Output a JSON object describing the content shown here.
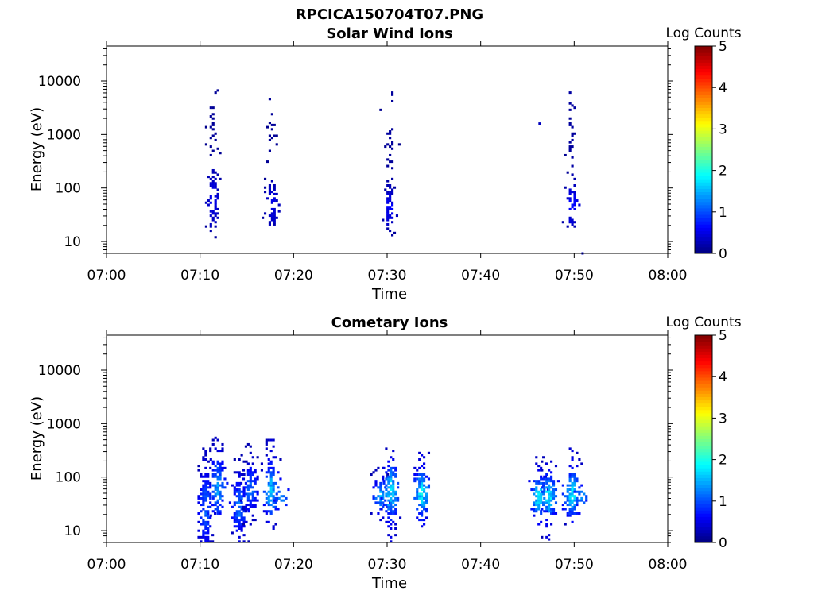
{
  "figure_title": "RPCICA150704T07.PNG",
  "colors": {
    "axis": "#000000",
    "background": "#ffffff"
  },
  "colorscale": {
    "name": "jet",
    "label": "Log Counts",
    "range": [
      0,
      5
    ],
    "ticks": [
      "0",
      "1",
      "2",
      "3",
      "4",
      "5"
    ]
  },
  "chart_data": [
    {
      "type": "heatmap",
      "title": "Solar Wind Ions",
      "xlabel": "Time",
      "ylabel": "Energy (eV)",
      "x_range_minutes": [
        0,
        60
      ],
      "y_range_ev": [
        6,
        45000
      ],
      "y_scale": "log",
      "x_tick_values": [
        0,
        10,
        20,
        30,
        40,
        50,
        60
      ],
      "x_tick_labels": [
        "07:00",
        "07:10",
        "07:20",
        "07:30",
        "07:40",
        "07:50",
        "08:00"
      ],
      "y_tick_values": [
        10,
        100,
        1000,
        10000
      ],
      "y_tick_labels": [
        "10",
        "100",
        "1000",
        "10000"
      ],
      "colorbar_label": "Log Counts",
      "bursts": [
        {
          "t": 11.4,
          "e_min": 12,
          "e_max": 7000,
          "core_min": 18,
          "core_max": 200,
          "peak": 0.6,
          "density": 0.22
        },
        {
          "t": 17.7,
          "e_min": 18,
          "e_max": 6000,
          "core_min": 20,
          "core_max": 120,
          "peak": 0.6,
          "density": 0.22
        },
        {
          "t": 30.3,
          "e_min": 12,
          "e_max": 6500,
          "core_min": 20,
          "core_max": 90,
          "peak": 0.7,
          "density": 0.22
        },
        {
          "t": 49.8,
          "e_min": 18,
          "e_max": 9000,
          "core_min": 20,
          "core_max": 110,
          "peak": 0.75,
          "density": 0.25
        }
      ],
      "isolated_points": [
        {
          "t": 46.3,
          "e": 1600,
          "v": 0.3
        },
        {
          "t": 50.9,
          "e": 6,
          "v": 0.3
        }
      ]
    },
    {
      "type": "heatmap",
      "title": "Cometary Ions",
      "xlabel": "Time",
      "ylabel": "Energy (eV)",
      "x_range_minutes": [
        0,
        60
      ],
      "y_range_ev": [
        6,
        45000
      ],
      "y_scale": "log",
      "x_tick_values": [
        0,
        10,
        20,
        30,
        40,
        50,
        60
      ],
      "x_tick_labels": [
        "07:00",
        "07:10",
        "07:20",
        "07:30",
        "07:40",
        "07:50",
        "08:00"
      ],
      "y_tick_values": [
        10,
        100,
        1000,
        10000
      ],
      "y_tick_labels": [
        "10",
        "100",
        "1000",
        "10000"
      ],
      "colorbar_label": "Log Counts",
      "bursts": [
        {
          "t": 10.6,
          "e_min": 6,
          "e_max": 400,
          "core_min": 6,
          "core_max": 120,
          "peak": 1.2,
          "density": 0.7
        },
        {
          "t": 11.9,
          "e_min": 18,
          "e_max": 650,
          "core_min": 20,
          "core_max": 200,
          "peak": 1.6,
          "density": 0.7
        },
        {
          "t": 14.2,
          "e_min": 6,
          "e_max": 300,
          "core_min": 10,
          "core_max": 80,
          "peak": 1.4,
          "density": 0.7
        },
        {
          "t": 15.4,
          "e_min": 12,
          "e_max": 450,
          "core_min": 25,
          "core_max": 150,
          "peak": 1.3,
          "density": 0.65
        },
        {
          "t": 17.6,
          "e_min": 10,
          "e_max": 500,
          "core_min": 20,
          "core_max": 150,
          "peak": 1.8,
          "density": 0.7
        },
        {
          "t": 18.7,
          "e_min": 30,
          "e_max": 60,
          "core_min": 35,
          "core_max": 50,
          "peak": 1.5,
          "density": 0.6
        },
        {
          "t": 29.3,
          "e_min": 15,
          "e_max": 150,
          "core_min": 25,
          "core_max": 80,
          "peak": 1.7,
          "density": 0.7
        },
        {
          "t": 30.4,
          "e_min": 6,
          "e_max": 400,
          "core_min": 20,
          "core_max": 150,
          "peak": 2.0,
          "density": 0.8
        },
        {
          "t": 33.7,
          "e_min": 12,
          "e_max": 300,
          "core_min": 20,
          "core_max": 120,
          "peak": 2.0,
          "density": 0.8
        },
        {
          "t": 46.2,
          "e_min": 12,
          "e_max": 250,
          "core_min": 20,
          "core_max": 90,
          "peak": 2.0,
          "density": 0.8
        },
        {
          "t": 47.3,
          "e_min": 6,
          "e_max": 200,
          "core_min": 20,
          "core_max": 100,
          "peak": 2.1,
          "density": 0.8
        },
        {
          "t": 49.8,
          "e_min": 12,
          "e_max": 400,
          "core_min": 20,
          "core_max": 120,
          "peak": 2.0,
          "density": 0.8
        },
        {
          "t": 50.8,
          "e_min": 30,
          "e_max": 60,
          "core_min": 35,
          "core_max": 55,
          "peak": 1.5,
          "density": 0.6
        }
      ],
      "isolated_points": []
    }
  ]
}
